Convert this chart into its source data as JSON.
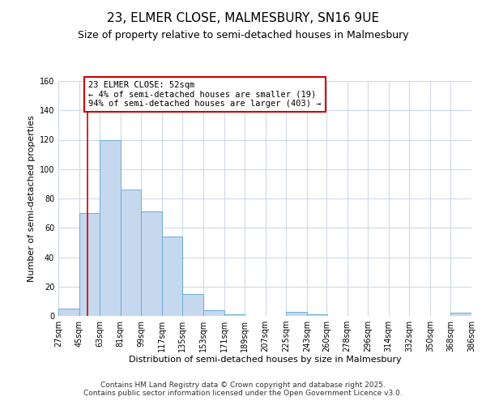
{
  "title1": "23, ELMER CLOSE, MALMESBURY, SN16 9UE",
  "title2": "Size of property relative to semi-detached houses in Malmesbury",
  "xlabel": "Distribution of semi-detached houses by size in Malmesbury",
  "ylabel": "Number of semi-detached properties",
  "bin_edges": [
    27,
    45,
    63,
    81,
    99,
    117,
    135,
    153,
    171,
    189,
    207,
    225,
    243,
    260,
    278,
    296,
    314,
    332,
    350,
    368,
    386
  ],
  "bin_labels": [
    "27sqm",
    "45sqm",
    "63sqm",
    "81sqm",
    "99sqm",
    "117sqm",
    "135sqm",
    "153sqm",
    "171sqm",
    "189sqm",
    "207sqm",
    "225sqm",
    "243sqm",
    "260sqm",
    "278sqm",
    "296sqm",
    "314sqm",
    "332sqm",
    "350sqm",
    "368sqm",
    "386sqm"
  ],
  "counts": [
    5,
    70,
    120,
    86,
    71,
    54,
    15,
    4,
    1,
    0,
    0,
    3,
    1,
    0,
    0,
    0,
    0,
    0,
    0,
    2
  ],
  "bar_color": "#c5d8ee",
  "bar_edge_color": "#6aaed6",
  "property_value": 52,
  "vline_color": "#cc0000",
  "annotation_text": "23 ELMER CLOSE: 52sqm\n← 4% of semi-detached houses are smaller (19)\n94% of semi-detached houses are larger (403) →",
  "annotation_box_color": "#ffffff",
  "annotation_box_edge": "#cc0000",
  "ylim": [
    0,
    160
  ],
  "yticks": [
    0,
    20,
    40,
    60,
    80,
    100,
    120,
    140,
    160
  ],
  "background_color": "#ffffff",
  "plot_bg_color": "#ffffff",
  "grid_color": "#d0d8e8",
  "footer_line1": "Contains HM Land Registry data © Crown copyright and database right 2025.",
  "footer_line2": "Contains public sector information licensed under the Open Government Licence v3.0.",
  "title1_fontsize": 11,
  "title2_fontsize": 9,
  "xlabel_fontsize": 8,
  "ylabel_fontsize": 8,
  "tick_fontsize": 7,
  "annotation_fontsize": 7.5,
  "footer_fontsize": 6.5
}
